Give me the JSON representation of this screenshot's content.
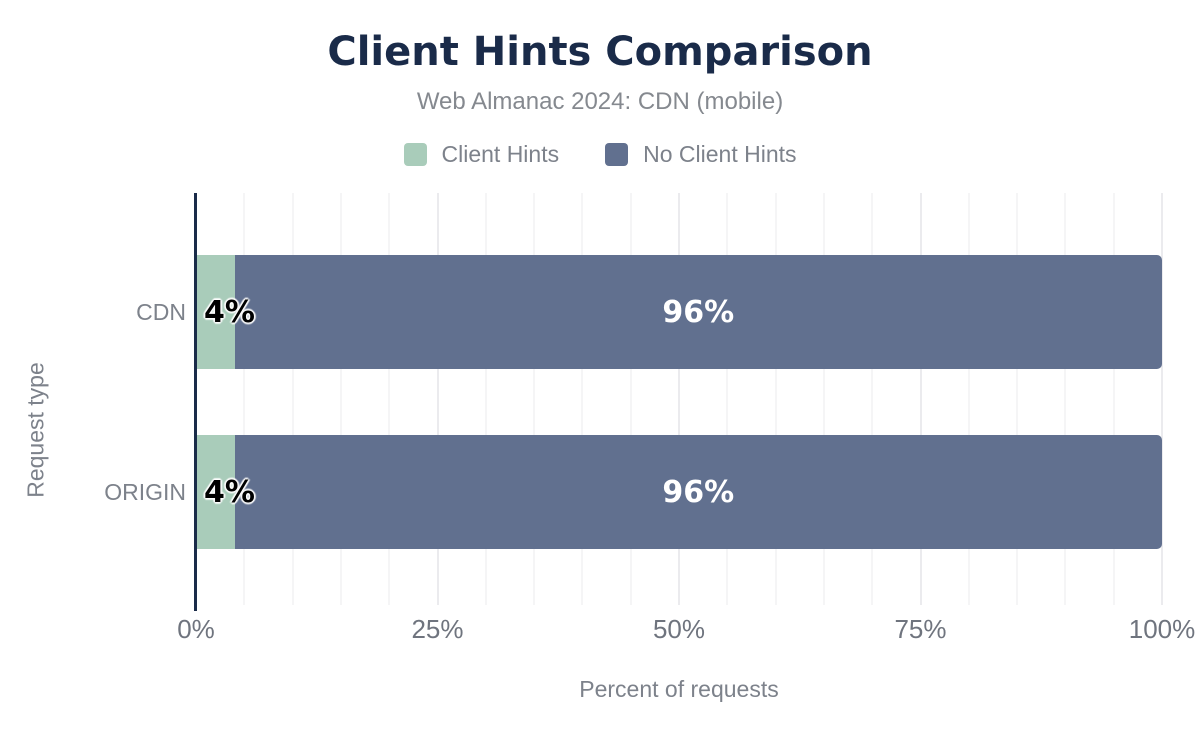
{
  "header": {
    "title": "Client Hints Comparison",
    "subtitle": "Web Almanac 2024: CDN (mobile)"
  },
  "legend": {
    "items": [
      {
        "label": "Client Hints",
        "color": "#a9ccba"
      },
      {
        "label": "No Client Hints",
        "color": "#61708f"
      }
    ]
  },
  "colors": {
    "title_navy": "#1a2b49",
    "axis_navy": "#1a2b49",
    "bar_green": "#a9ccba",
    "bar_slate": "#61708f",
    "text_gray": "#7d828b",
    "tick_gray": "#6f747e",
    "grid_minor": "#f5f5f6",
    "grid_major": "#ebebee",
    "background": "#ffffff"
  },
  "chart_data": {
    "type": "bar",
    "orientation": "horizontal",
    "stacked": true,
    "title": "Client Hints Comparison",
    "subtitle": "Web Almanac 2024: CDN (mobile)",
    "categories": [
      "CDN",
      "ORIGIN"
    ],
    "series": [
      {
        "name": "Client Hints",
        "color": "#a9ccba",
        "values": [
          4,
          4
        ]
      },
      {
        "name": "No Client Hints",
        "color": "#61708f",
        "values": [
          96,
          96
        ]
      }
    ],
    "value_labels": [
      [
        "4%",
        "96%"
      ],
      [
        "4%",
        "96%"
      ]
    ],
    "xlabel": "Percent of requests",
    "ylabel": "Request type",
    "xlim": [
      0,
      100
    ],
    "xticks": [
      "0%",
      "25%",
      "50%",
      "75%",
      "100%"
    ],
    "grid": {
      "minor_step": 5,
      "major_step": 25,
      "max": 100
    },
    "legend_position": "top"
  }
}
